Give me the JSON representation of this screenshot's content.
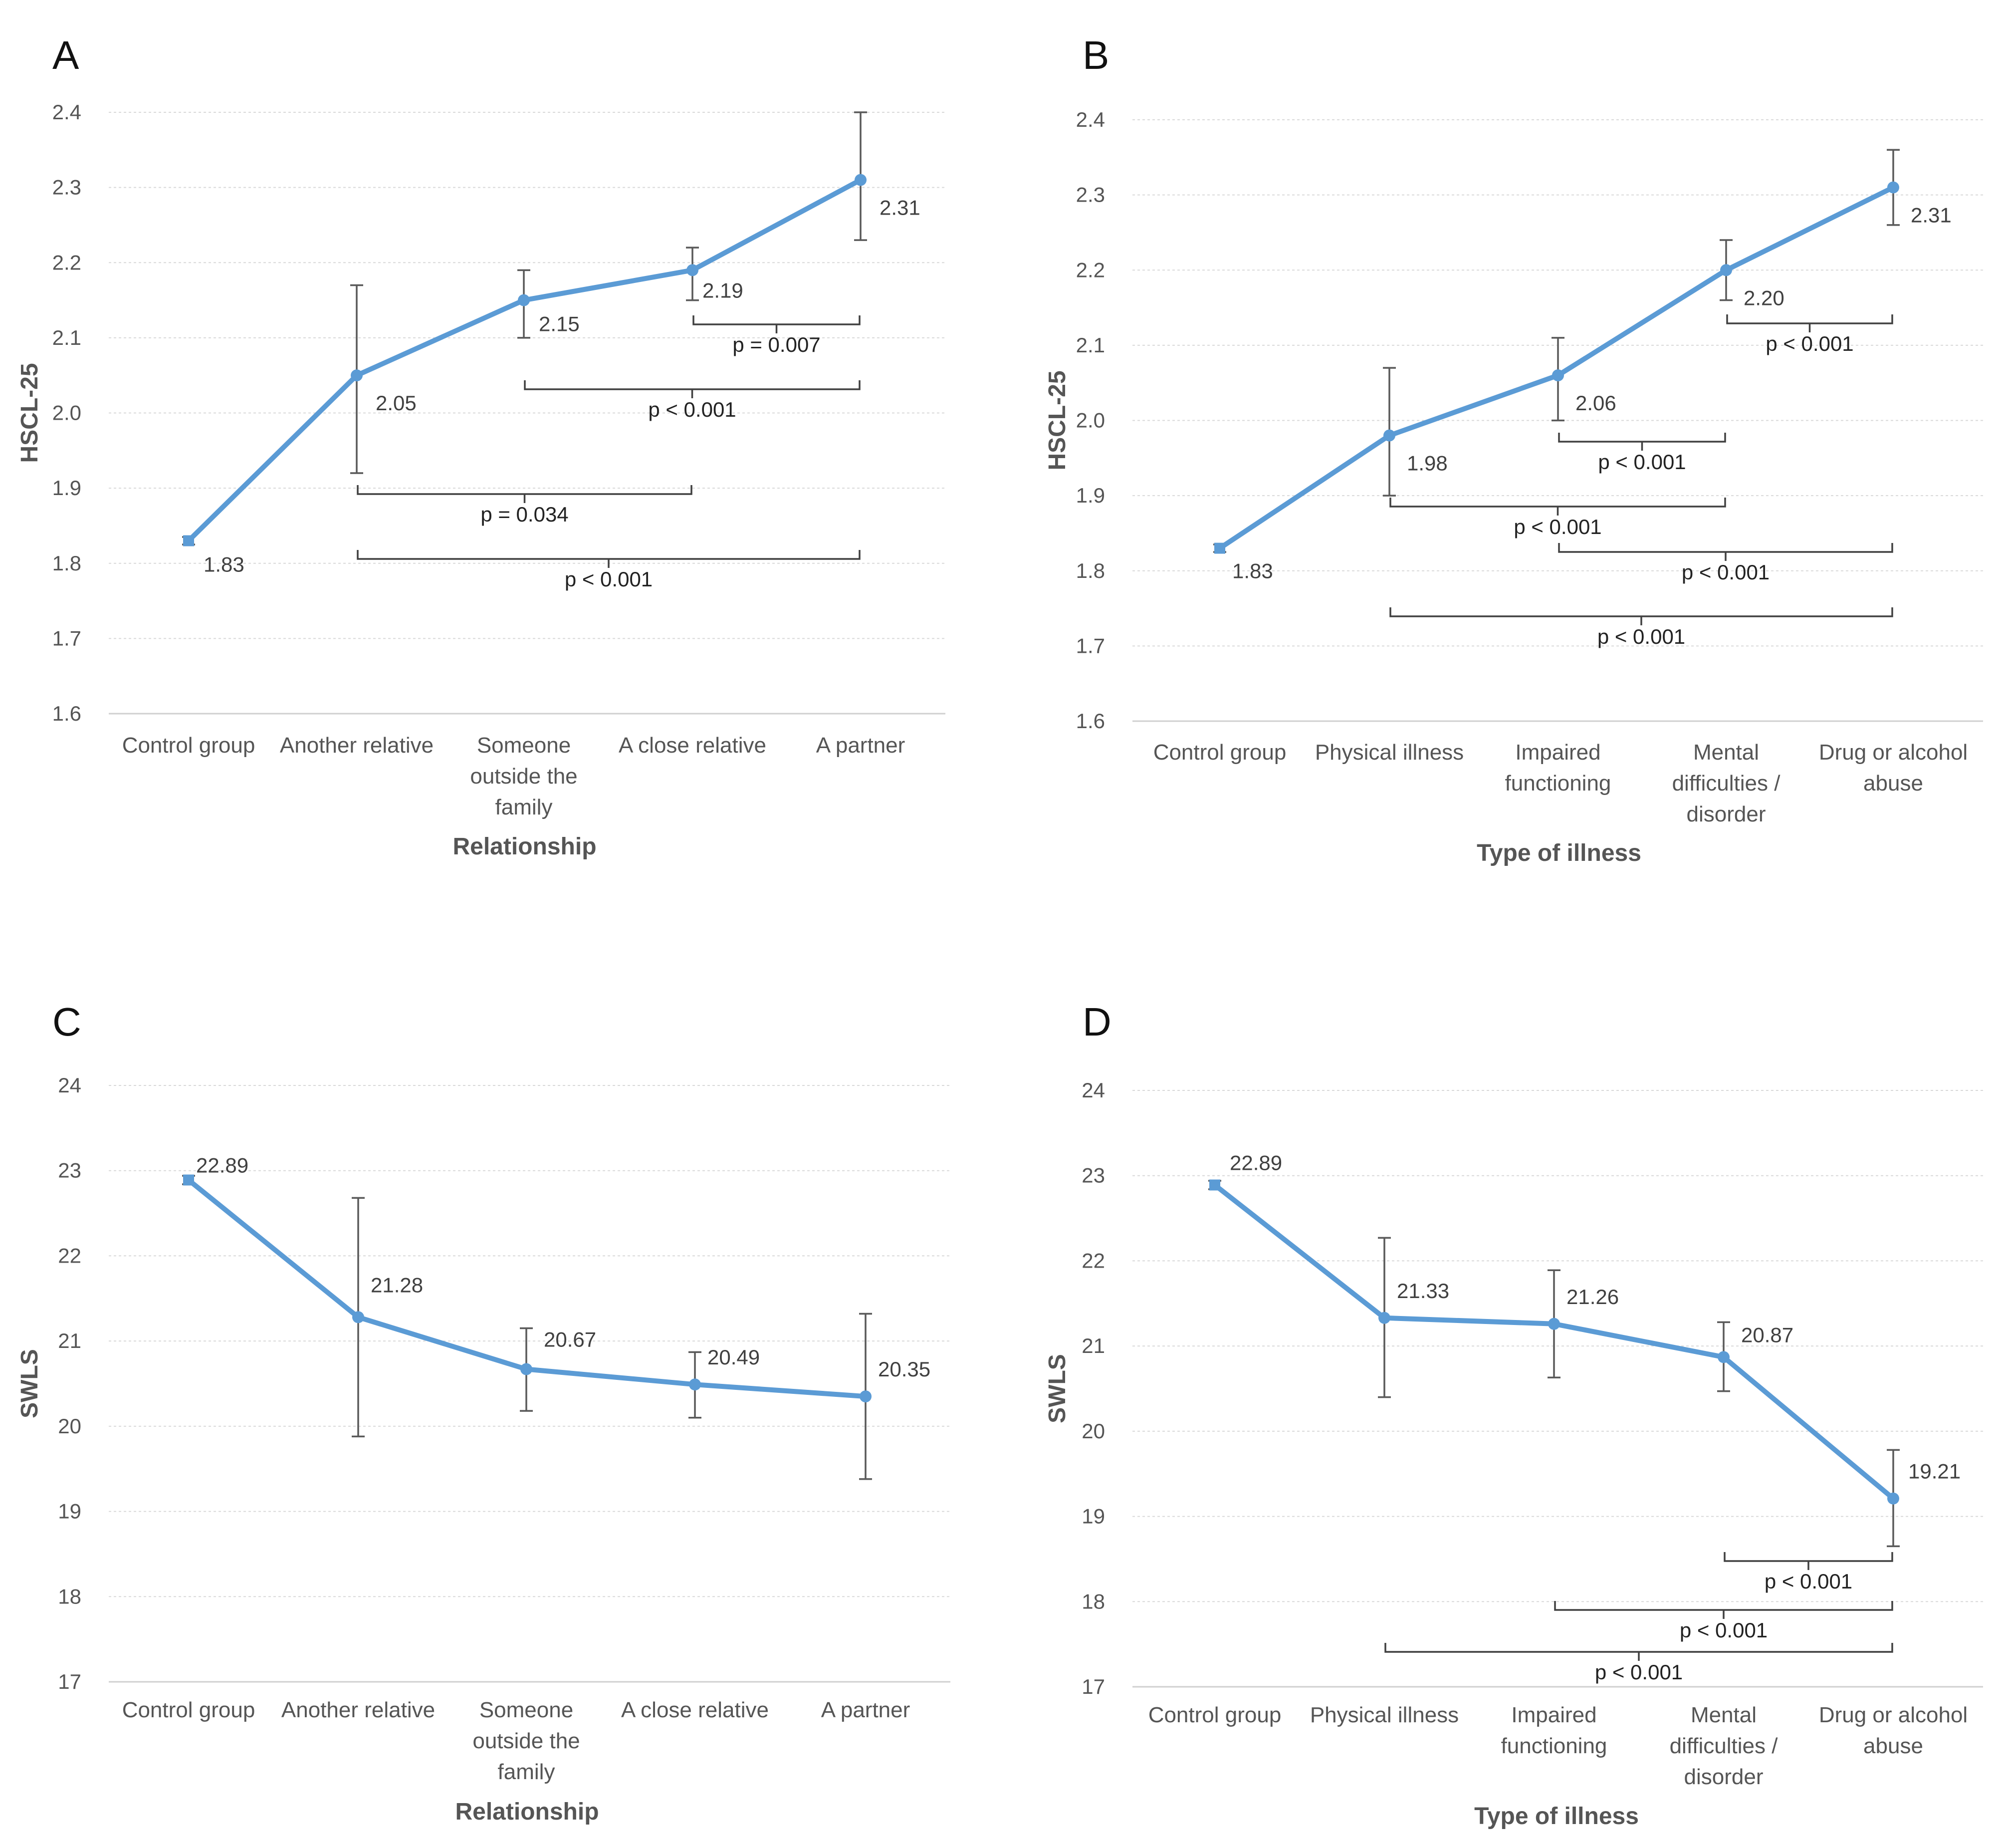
{
  "colors": {
    "series": "#5b9bd5",
    "error_bar": "#595959",
    "bracket": "#404040",
    "grid": "#d9d9d9"
  },
  "chart_data": [
    {
      "panel": "A",
      "type": "line",
      "categories": [
        "Control group",
        "Another relative",
        "Someone outside the family",
        "A close relative",
        "A partner"
      ],
      "values": [
        1.83,
        2.05,
        2.15,
        2.19,
        2.31
      ],
      "value_labels": [
        "1.83",
        "2.05",
        "2.15",
        "2.19",
        "2.31"
      ],
      "error_low": [
        1.825,
        1.92,
        2.1,
        2.15,
        2.23
      ],
      "error_high": [
        1.835,
        2.17,
        2.19,
        2.22,
        2.4
      ],
      "ylabel": "HSCL-25",
      "xlabel": "Relationship",
      "ylim": [
        1.6,
        2.4
      ],
      "yticks": [
        "1.6",
        "1.7",
        "1.8",
        "1.9",
        "2.0",
        "2.1",
        "2.2",
        "2.3",
        "2.4"
      ],
      "brackets": [
        {
          "from": "A close relative",
          "to": "A partner",
          "label": "p = 0.007"
        },
        {
          "from": "Someone outside the family",
          "to": "A partner",
          "label": "p < 0.001"
        },
        {
          "from": "Another relative",
          "to": "A close relative",
          "label": "p = 0.034"
        },
        {
          "from": "Another relative",
          "to": "A partner",
          "label": "p < 0.001"
        }
      ]
    },
    {
      "panel": "B",
      "type": "line",
      "categories": [
        "Control group",
        "Physical illness",
        "Impaired functioning",
        "Mental difficulties / disorder",
        "Drug or alcohol abuse"
      ],
      "values": [
        1.83,
        1.98,
        2.06,
        2.2,
        2.31
      ],
      "value_labels": [
        "1.83",
        "1.98",
        "2.06",
        "2.20",
        "2.31"
      ],
      "error_low": [
        1.825,
        1.9,
        2.0,
        2.16,
        2.26
      ],
      "error_high": [
        1.835,
        2.07,
        2.11,
        2.24,
        2.36
      ],
      "ylabel": "HSCL-25",
      "xlabel": "Type of illness",
      "ylim": [
        1.6,
        2.4
      ],
      "yticks": [
        "1.6",
        "1.7",
        "1.8",
        "1.9",
        "2.0",
        "2.1",
        "2.2",
        "2.3",
        "2.4"
      ],
      "brackets": [
        {
          "from": "Mental difficulties / disorder",
          "to": "Drug or alcohol abuse",
          "label": "p < 0.001"
        },
        {
          "from": "Impaired functioning",
          "to": "Mental difficulties / disorder",
          "label": "p < 0.001"
        },
        {
          "from": "Physical illness",
          "to": "Mental difficulties / disorder",
          "label": "p < 0.001"
        },
        {
          "from": "Impaired functioning",
          "to": "Drug or alcohol abuse",
          "label": "p < 0.001"
        },
        {
          "from": "Physical illness",
          "to": "Drug or alcohol abuse",
          "label": "p < 0.001"
        }
      ]
    },
    {
      "panel": "C",
      "type": "line",
      "categories": [
        "Control group",
        "Another relative",
        "Someone outside the family",
        "A close relative",
        "A partner"
      ],
      "values": [
        22.89,
        21.28,
        20.67,
        20.49,
        20.35
      ],
      "value_labels": [
        "22.89",
        "21.28",
        "20.67",
        "20.49",
        "20.35"
      ],
      "error_low": [
        22.84,
        19.88,
        20.18,
        20.1,
        19.38
      ],
      "error_high": [
        22.94,
        22.68,
        21.15,
        20.87,
        21.32
      ],
      "ylabel": "SWLS",
      "xlabel": "Relationship",
      "ylim": [
        17,
        24
      ],
      "yticks": [
        "17",
        "18",
        "19",
        "20",
        "21",
        "22",
        "23",
        "24"
      ],
      "brackets": []
    },
    {
      "panel": "D",
      "type": "line",
      "categories": [
        "Control group",
        "Physical illness",
        "Impaired functioning",
        "Mental difficulties / disorder",
        "Drug or alcohol abuse"
      ],
      "values": [
        22.89,
        21.33,
        21.26,
        20.87,
        19.21
      ],
      "value_labels": [
        "22.89",
        "21.33",
        "21.26",
        "20.87",
        "19.21"
      ],
      "error_low": [
        22.84,
        20.4,
        20.63,
        20.47,
        18.65
      ],
      "error_high": [
        22.94,
        22.27,
        21.89,
        21.28,
        19.78
      ],
      "ylabel": "SWLS",
      "xlabel": "Type of illness",
      "ylim": [
        17,
        24
      ],
      "yticks": [
        "17",
        "18",
        "19",
        "20",
        "21",
        "22",
        "23",
        "24"
      ],
      "brackets": [
        {
          "from": "Mental difficulties / disorder",
          "to": "Drug or alcohol abuse",
          "label": "p < 0.001"
        },
        {
          "from": "Impaired functioning",
          "to": "Drug or alcohol abuse",
          "label": "p < 0.001"
        },
        {
          "from": "Physical illness",
          "to": "Drug or alcohol abuse",
          "label": "p < 0.001"
        }
      ]
    }
  ]
}
